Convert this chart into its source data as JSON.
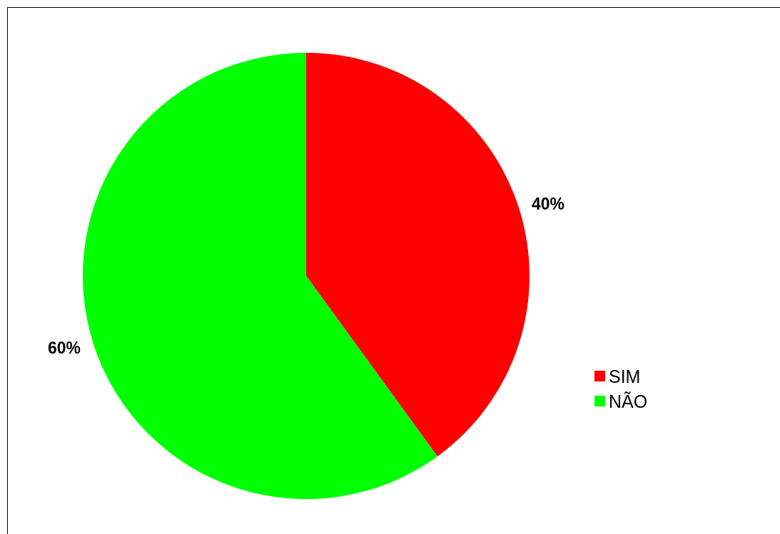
{
  "chart_data": {
    "type": "pie",
    "categories": [
      "SIM",
      "NÃO"
    ],
    "values": [
      40,
      60
    ],
    "colors": [
      "#ff0000",
      "#00ff00"
    ],
    "value_labels": [
      "40%",
      "60%"
    ],
    "legend": "right"
  }
}
